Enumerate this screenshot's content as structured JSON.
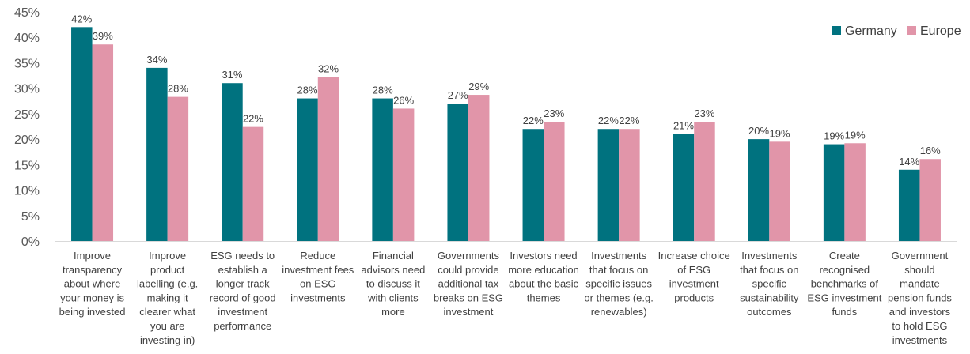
{
  "chart_data": {
    "type": "bar",
    "title": "",
    "xlabel": "",
    "ylabel": "",
    "ylim": [
      0,
      45
    ],
    "y_ticks": [
      "0%",
      "5%",
      "10%",
      "15%",
      "20%",
      "25%",
      "30%",
      "35%",
      "40%",
      "45%"
    ],
    "y_tick_values": [
      0,
      5,
      10,
      15,
      20,
      25,
      30,
      35,
      40,
      45
    ],
    "grid": false,
    "legend_position": "top-right",
    "categories": [
      [
        "Improve",
        "transparency",
        "about where",
        "your money is",
        "being invested"
      ],
      [
        "Improve",
        "product",
        "labelling (e.g.",
        "making it",
        "clearer what",
        "you are",
        "investing in)"
      ],
      [
        "ESG needs to",
        "establish a",
        "longer track",
        "record of good",
        "investment",
        "performance"
      ],
      [
        "Reduce",
        "investment fees",
        "on ESG",
        "investments"
      ],
      [
        "Financial",
        "advisors need",
        "to discuss it",
        "with clients",
        "more"
      ],
      [
        "Governments",
        "could provide",
        "additional tax",
        "breaks on ESG",
        "investment"
      ],
      [
        "Investors need",
        "more education",
        "about the basic",
        "themes"
      ],
      [
        "Investments",
        "that focus on",
        "specific issues",
        "or themes (e.g.",
        "renewables)"
      ],
      [
        "Increase choice",
        "of ESG",
        "investment",
        "products"
      ],
      [
        "Investments",
        "that focus on",
        "specific",
        "sustainability",
        "outcomes"
      ],
      [
        "Create",
        "recognised",
        "benchmarks of",
        "ESG investment",
        "funds"
      ],
      [
        "Government",
        "should",
        "mandate",
        "pension funds",
        "and investors",
        "to hold ESG",
        "investments"
      ]
    ],
    "series": [
      {
        "name": "Germany",
        "color": "#00727F",
        "values": [
          42,
          34,
          31,
          28,
          28,
          27,
          22,
          22,
          21,
          20,
          19,
          14
        ],
        "labels": [
          "42%",
          "34%",
          "31%",
          "28%",
          "28%",
          "27%",
          "22%",
          "22%",
          "21%",
          "20%",
          "19%",
          "14%"
        ]
      },
      {
        "name": "Europe",
        "color": "#E195A9",
        "values": [
          38.6,
          28.3,
          22.4,
          32.2,
          26,
          28.7,
          23.4,
          22,
          23.4,
          19.5,
          19.2,
          16.1
        ],
        "labels": [
          "39%",
          "28%",
          "22%",
          "32%",
          "26%",
          "29%",
          "23%",
          "22%",
          "23%",
          "19%",
          "19%",
          "16%"
        ]
      }
    ]
  }
}
